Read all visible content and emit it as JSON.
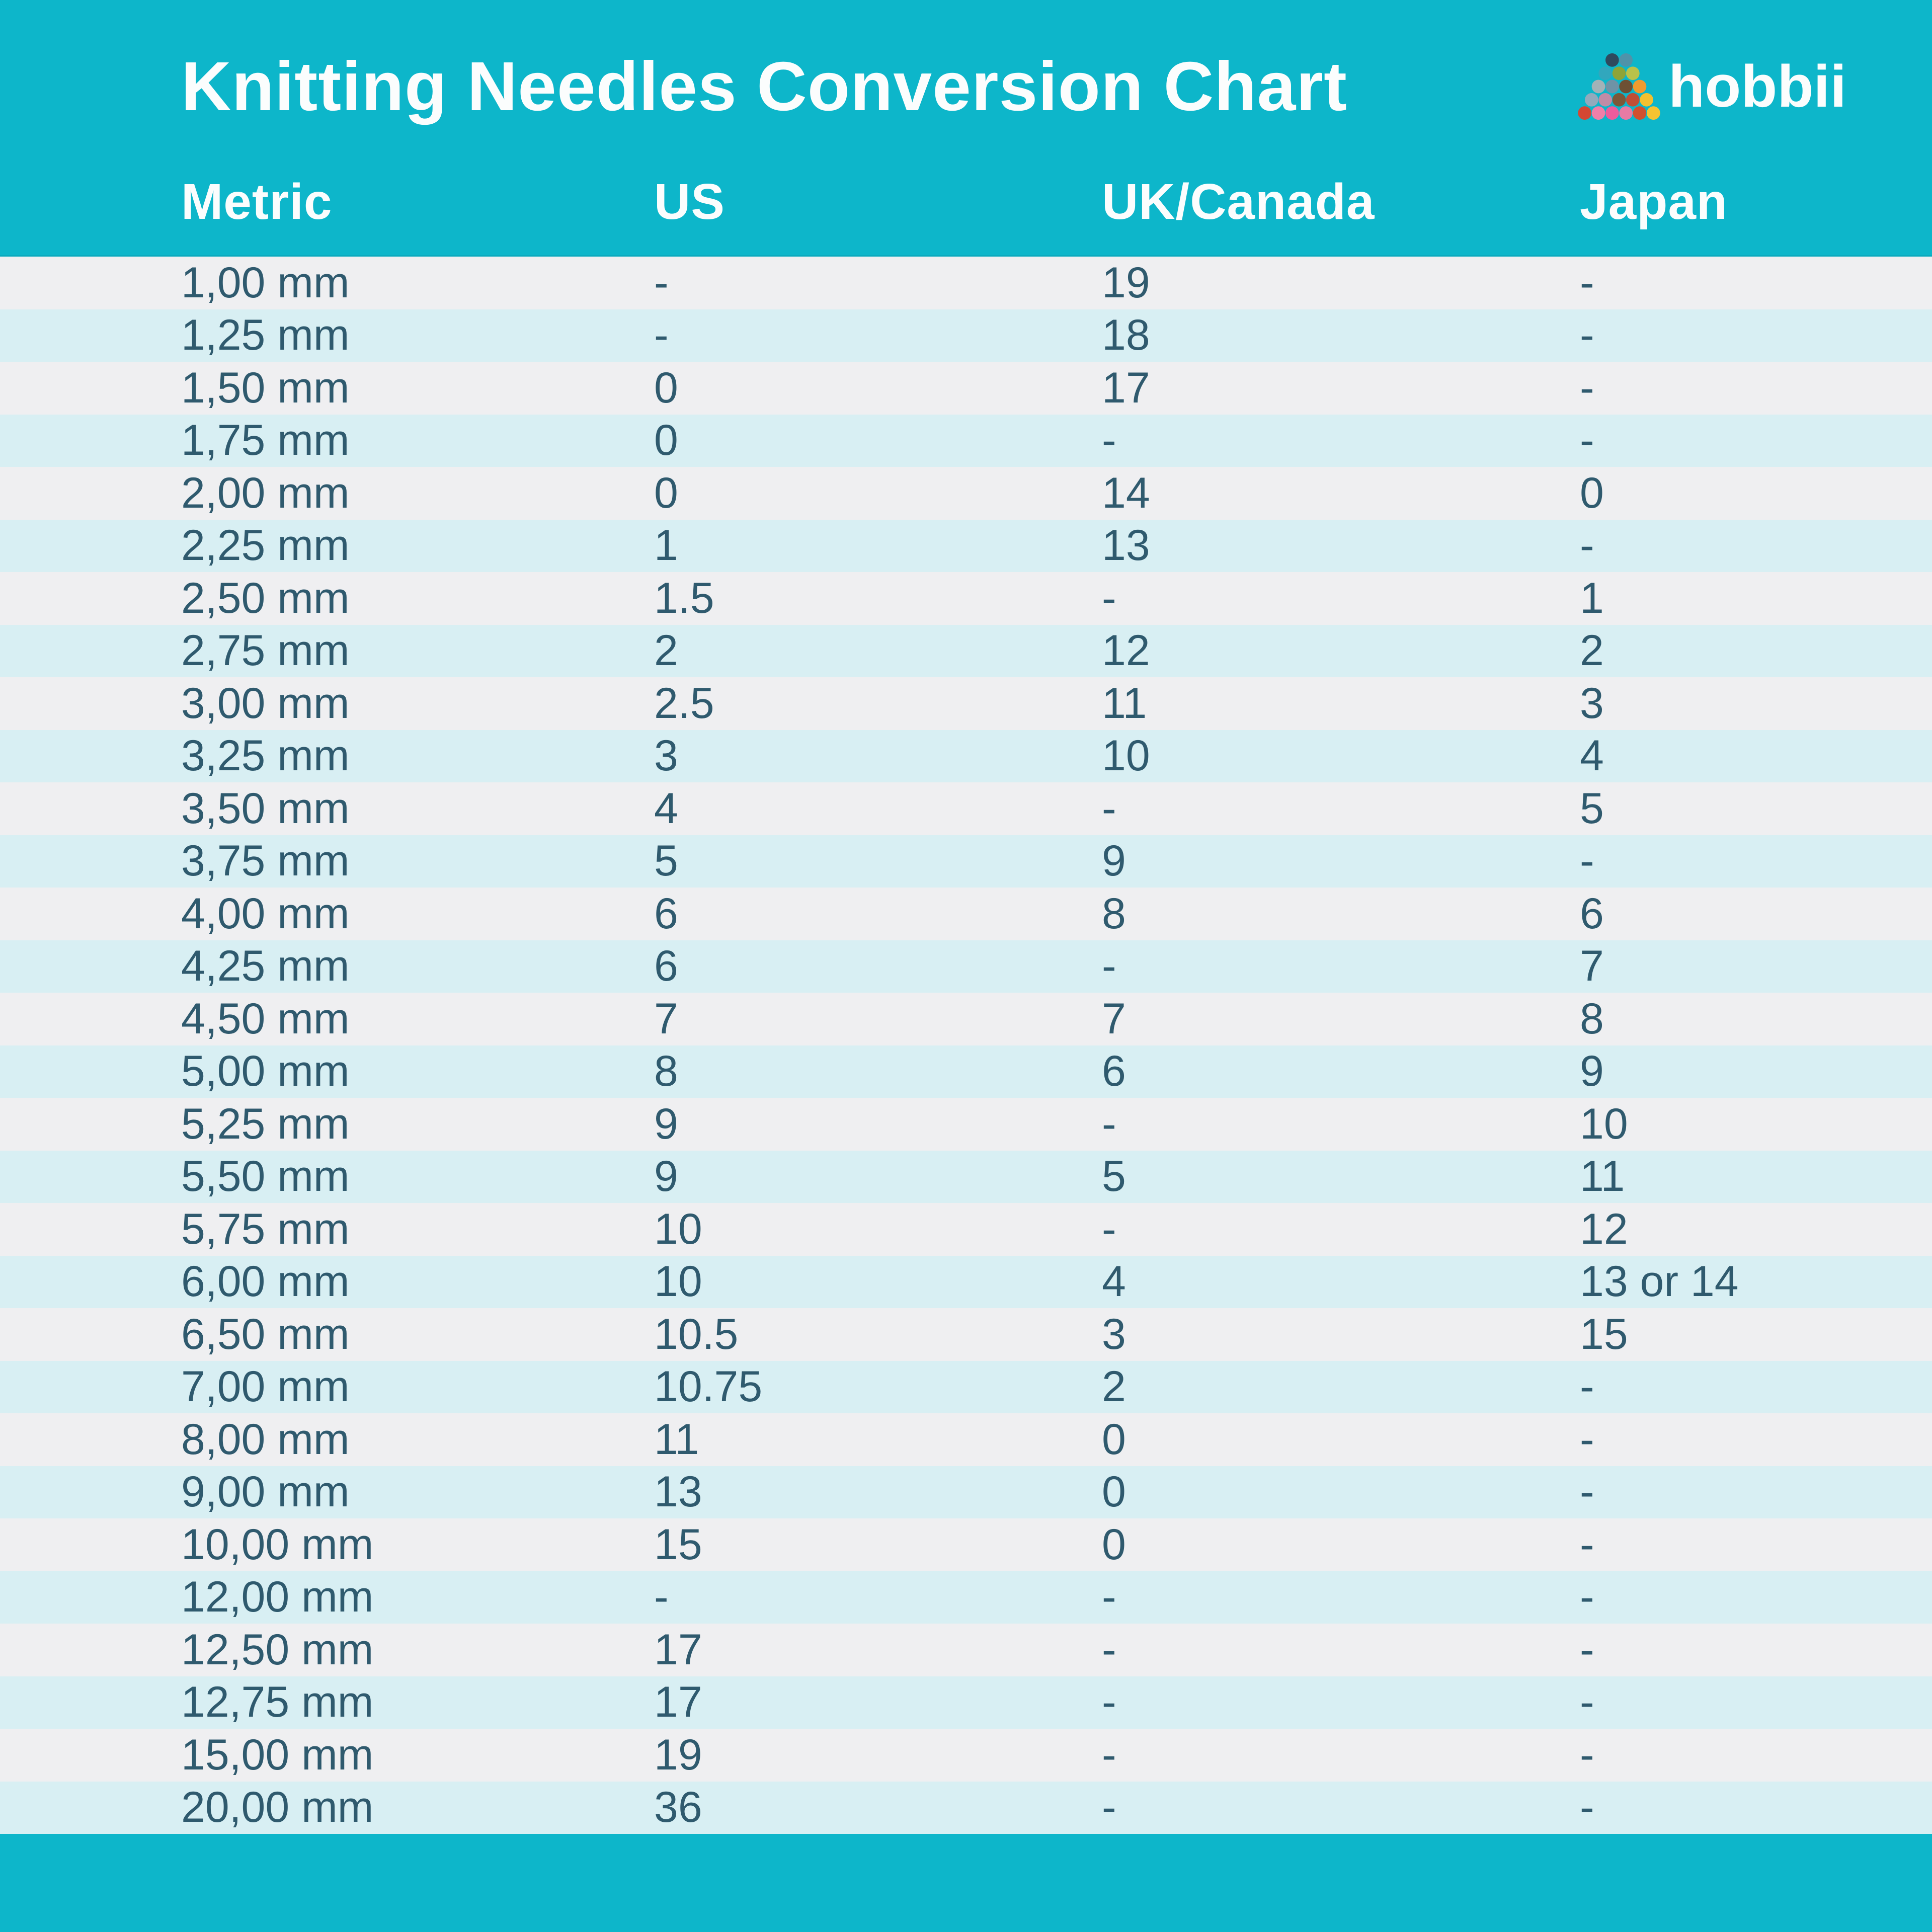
{
  "header": {
    "title": "Knitting Needles Conversion Chart",
    "brand": "hobbii"
  },
  "chart_data": {
    "type": "table",
    "title": "Knitting Needles Conversion Chart",
    "columns": [
      "Metric",
      "US",
      "UK/Canada",
      "Japan"
    ],
    "rows": [
      [
        "1,00 mm",
        "-",
        "19",
        "-"
      ],
      [
        "1,25 mm",
        "-",
        "18",
        "-"
      ],
      [
        "1,50 mm",
        "0",
        "17",
        "-"
      ],
      [
        "1,75 mm",
        "0",
        "-",
        "-"
      ],
      [
        "2,00 mm",
        "0",
        "14",
        "0"
      ],
      [
        "2,25 mm",
        "1",
        "13",
        "-"
      ],
      [
        "2,50 mm",
        "1.5",
        "-",
        "1"
      ],
      [
        "2,75 mm",
        "2",
        "12",
        "2"
      ],
      [
        "3,00 mm",
        "2.5",
        "11",
        "3"
      ],
      [
        "3,25 mm",
        "3",
        "10",
        "4"
      ],
      [
        "3,50 mm",
        "4",
        "-",
        "5"
      ],
      [
        "3,75 mm",
        "5",
        "9",
        "-"
      ],
      [
        "4,00 mm",
        "6",
        "8",
        "6"
      ],
      [
        "4,25 mm",
        "6",
        "-",
        "7"
      ],
      [
        "4,50 mm",
        "7",
        "7",
        "8"
      ],
      [
        "5,00 mm",
        "8",
        "6",
        "9"
      ],
      [
        "5,25 mm",
        "9",
        "-",
        "10"
      ],
      [
        "5,50 mm",
        "9",
        "5",
        "11"
      ],
      [
        "5,75 mm",
        "10",
        "-",
        "12"
      ],
      [
        "6,00 mm",
        "10",
        "4",
        "13 or 14"
      ],
      [
        "6,50 mm",
        "10.5",
        "3",
        "15"
      ],
      [
        "7,00 mm",
        "10.75",
        "2",
        "-"
      ],
      [
        "8,00 mm",
        "11",
        "0",
        "-"
      ],
      [
        "9,00 mm",
        "13",
        "0",
        "-"
      ],
      [
        "10,00 mm",
        "15",
        "0",
        "-"
      ],
      [
        "12,00 mm",
        "-",
        "-",
        "-"
      ],
      [
        "12,50 mm",
        "17",
        "-",
        "-"
      ],
      [
        "12,75 mm",
        "17",
        "-",
        "-"
      ],
      [
        "15,00 mm",
        "19",
        "-",
        "-"
      ],
      [
        "20,00 mm",
        "36",
        "-",
        "-"
      ]
    ]
  },
  "colors": {
    "teal_background": "#0db6ca",
    "row_gray": "#efeff1",
    "row_cyan": "#d8eff3",
    "cell_text": "#2f5a6e",
    "header_text": "#fbfdfd"
  },
  "logo": {
    "yarn_rows": [
      [
        "#2e4a5e",
        "#4f93a9"
      ],
      [
        "#31a7bd",
        "#8fa437",
        "#bac24a"
      ],
      [
        "#a3b2b7",
        "#6f93a6",
        "#6e5034",
        "#f19b2f"
      ],
      [
        "#93aabc",
        "#c08ba6",
        "#7d5838",
        "#c14e35",
        "#f3c02f"
      ],
      [
        "#d44733",
        "#f07fa9",
        "#ee5c9c",
        "#e87ba4",
        "#d0502f",
        "#f5c331"
      ]
    ]
  }
}
